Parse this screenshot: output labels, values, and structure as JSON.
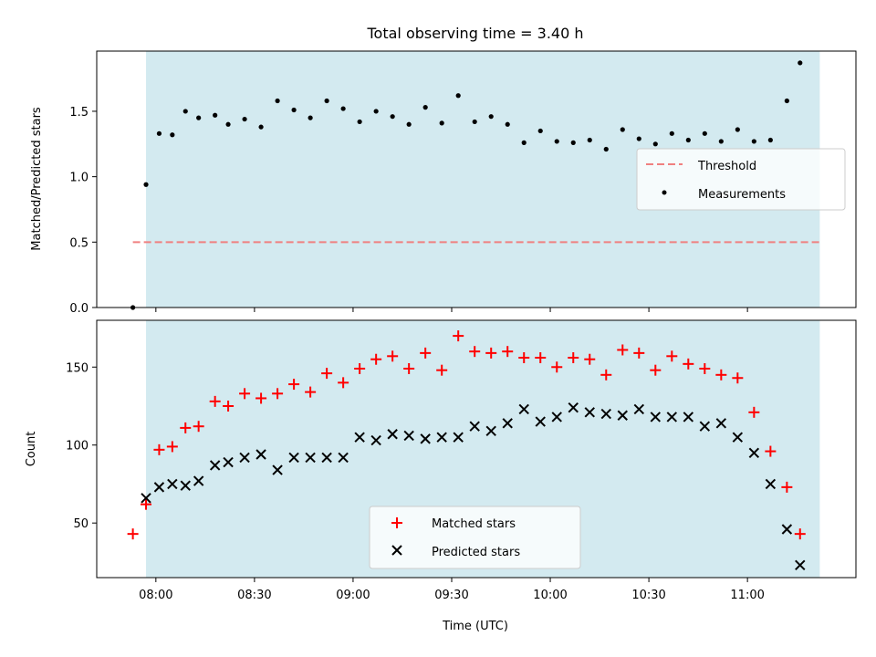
{
  "chart_data": [
    {
      "type": "scatter",
      "title": "Total observing time = 3.40 h",
      "ylabel": "Matched/Predicted stars",
      "xlabel": "",
      "xlim": [
        "07:42",
        "11:33"
      ],
      "ylim": [
        0,
        1.96
      ],
      "yticks": [
        0.0,
        0.5,
        1.0,
        1.5
      ],
      "ytick_labels": [
        "0.0",
        "0.5",
        "1.0",
        "1.5"
      ],
      "shaded_span": [
        "07:57",
        "11:22"
      ],
      "shade_color": "#d3eaf0",
      "threshold": {
        "name": "Threshold",
        "y": 0.5,
        "from": "07:53",
        "to": "11:22",
        "color": "#f08080",
        "style": "dashed"
      },
      "legend": {
        "placement": "center-right",
        "entries": [
          "Threshold",
          "Measurements"
        ]
      },
      "series": [
        {
          "name": "Measurements",
          "color": "#000000",
          "marker": "dot",
          "x": [
            "07:53",
            "07:57",
            "08:01",
            "08:05",
            "08:09",
            "08:13",
            "08:18",
            "08:22",
            "08:27",
            "08:32",
            "08:37",
            "08:42",
            "08:47",
            "08:52",
            "08:57",
            "09:02",
            "09:07",
            "09:12",
            "09:17",
            "09:22",
            "09:27",
            "09:32",
            "09:37",
            "09:42",
            "09:47",
            "09:52",
            "09:57",
            "10:02",
            "10:07",
            "10:12",
            "10:17",
            "10:22",
            "10:27",
            "10:32",
            "10:37",
            "10:42",
            "10:47",
            "10:52",
            "10:57",
            "11:02",
            "11:07",
            "11:12",
            "11:16"
          ],
          "y": [
            0.0,
            0.94,
            1.33,
            1.32,
            1.5,
            1.45,
            1.47,
            1.4,
            1.44,
            1.38,
            1.58,
            1.51,
            1.45,
            1.58,
            1.52,
            1.42,
            1.5,
            1.46,
            1.4,
            1.53,
            1.41,
            1.62,
            1.42,
            1.46,
            1.4,
            1.26,
            1.35,
            1.27,
            1.26,
            1.28,
            1.21,
            1.36,
            1.29,
            1.25,
            1.33,
            1.28,
            1.33,
            1.27,
            1.36,
            1.27,
            1.28,
            1.58,
            1.87
          ]
        }
      ]
    },
    {
      "type": "scatter",
      "title": "",
      "ylabel": "Count",
      "xlabel": "Time (UTC)",
      "xlim": [
        "07:42",
        "11:33"
      ],
      "ylim": [
        15,
        180
      ],
      "yticks": [
        50,
        100,
        150
      ],
      "xticks": [
        "08:00",
        "08:30",
        "09:00",
        "09:30",
        "10:00",
        "10:30",
        "11:00"
      ],
      "shaded_span": [
        "07:57",
        "11:22"
      ],
      "shade_color": "#d3eaf0",
      "legend": {
        "placement": "bottom-center",
        "entries": [
          "Matched stars",
          "Predicted stars"
        ]
      },
      "series": [
        {
          "name": "Matched stars",
          "color": "#ff0000",
          "marker": "plus",
          "x": [
            "07:53",
            "07:57",
            "08:01",
            "08:05",
            "08:09",
            "08:13",
            "08:18",
            "08:22",
            "08:27",
            "08:32",
            "08:37",
            "08:42",
            "08:47",
            "08:52",
            "08:57",
            "09:02",
            "09:07",
            "09:12",
            "09:17",
            "09:22",
            "09:27",
            "09:32",
            "09:37",
            "09:42",
            "09:47",
            "09:52",
            "09:57",
            "10:02",
            "10:07",
            "10:12",
            "10:17",
            "10:22",
            "10:27",
            "10:32",
            "10:37",
            "10:42",
            "10:47",
            "10:52",
            "10:57",
            "11:02",
            "11:07",
            "11:12",
            "11:16"
          ],
          "y": [
            43,
            62,
            97,
            99,
            111,
            112,
            128,
            125,
            133,
            130,
            133,
            139,
            134,
            146,
            140,
            149,
            155,
            157,
            149,
            159,
            148,
            170,
            160,
            159,
            160,
            156,
            156,
            150,
            156,
            155,
            145,
            161,
            159,
            148,
            157,
            152,
            149,
            145,
            143,
            121,
            96,
            73,
            43
          ]
        },
        {
          "name": "Predicted stars",
          "color": "#000000",
          "marker": "x",
          "x": [
            "07:57",
            "08:01",
            "08:05",
            "08:09",
            "08:13",
            "08:18",
            "08:22",
            "08:27",
            "08:32",
            "08:37",
            "08:42",
            "08:47",
            "08:52",
            "08:57",
            "09:02",
            "09:07",
            "09:12",
            "09:17",
            "09:22",
            "09:27",
            "09:32",
            "09:37",
            "09:42",
            "09:47",
            "09:52",
            "09:57",
            "10:02",
            "10:07",
            "10:12",
            "10:17",
            "10:22",
            "10:27",
            "10:32",
            "10:37",
            "10:42",
            "10:47",
            "10:52",
            "10:57",
            "11:02",
            "11:07",
            "11:12",
            "11:16"
          ],
          "y": [
            66,
            73,
            75,
            74,
            77,
            87,
            89,
            92,
            94,
            84,
            92,
            92,
            92,
            92,
            105,
            103,
            107,
            106,
            104,
            105,
            105,
            112,
            109,
            114,
            123,
            115,
            118,
            124,
            121,
            120,
            119,
            123,
            118,
            118,
            118,
            112,
            114,
            105,
            95,
            75,
            46,
            23
          ]
        }
      ]
    }
  ]
}
